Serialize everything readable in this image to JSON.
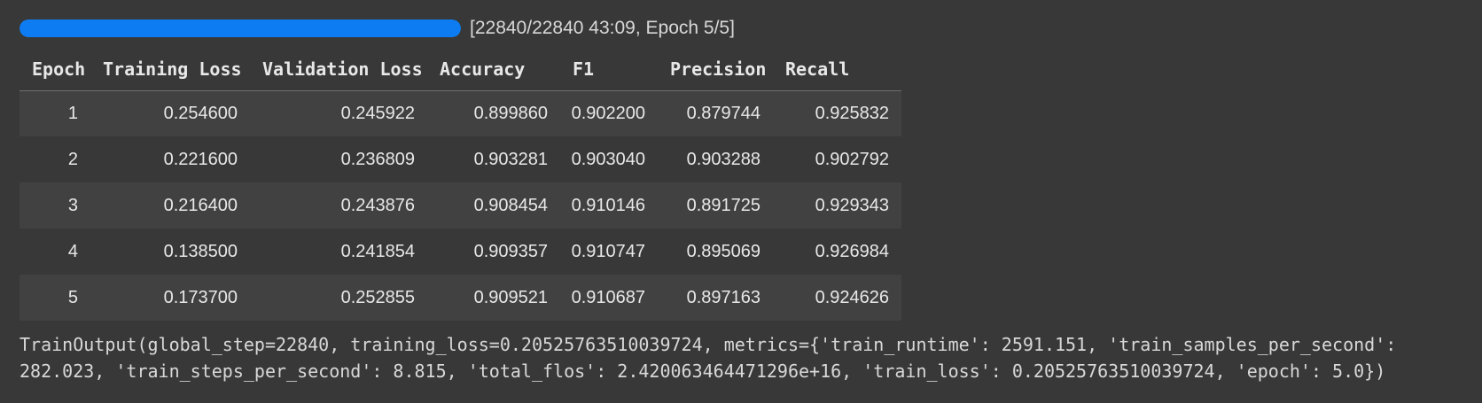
{
  "colors": {
    "background": "#383838",
    "row_stripe": "#414141",
    "header_border": "#6e6e6e",
    "progress_bar": "#0d7cf2",
    "text_primary": "#e8e8e8",
    "text_secondary": "#d8d8d8"
  },
  "progress": {
    "percent": 100,
    "current_step": "22840",
    "total_steps": "22840",
    "elapsed": "43:09",
    "epoch": "5/5",
    "label": "[22840/22840 43:09, Epoch 5/5]"
  },
  "table": {
    "columns": [
      "Epoch",
      "Training Loss",
      "Validation Loss",
      "Accuracy",
      "F1",
      "Precision",
      "Recall"
    ],
    "rows": [
      [
        "1",
        "0.254600",
        "0.245922",
        "0.899860",
        "0.902200",
        "0.879744",
        "0.925832"
      ],
      [
        "2",
        "0.221600",
        "0.236809",
        "0.903281",
        "0.903040",
        "0.903288",
        "0.902792"
      ],
      [
        "3",
        "0.216400",
        "0.243876",
        "0.908454",
        "0.910146",
        "0.891725",
        "0.929343"
      ],
      [
        "4",
        "0.138500",
        "0.241854",
        "0.909357",
        "0.910747",
        "0.895069",
        "0.926984"
      ],
      [
        "5",
        "0.173700",
        "0.252855",
        "0.909521",
        "0.910687",
        "0.897163",
        "0.924626"
      ]
    ]
  },
  "output": {
    "text": "TrainOutput(global_step=22840, training_loss=0.20525763510039724, metrics={'train_runtime': 2591.151, 'train_samples_per_second': 282.023, 'train_steps_per_second': 8.815, 'total_flos': 2.420063464471296e+16, 'train_loss': 0.20525763510039724, 'epoch': 5.0})"
  }
}
